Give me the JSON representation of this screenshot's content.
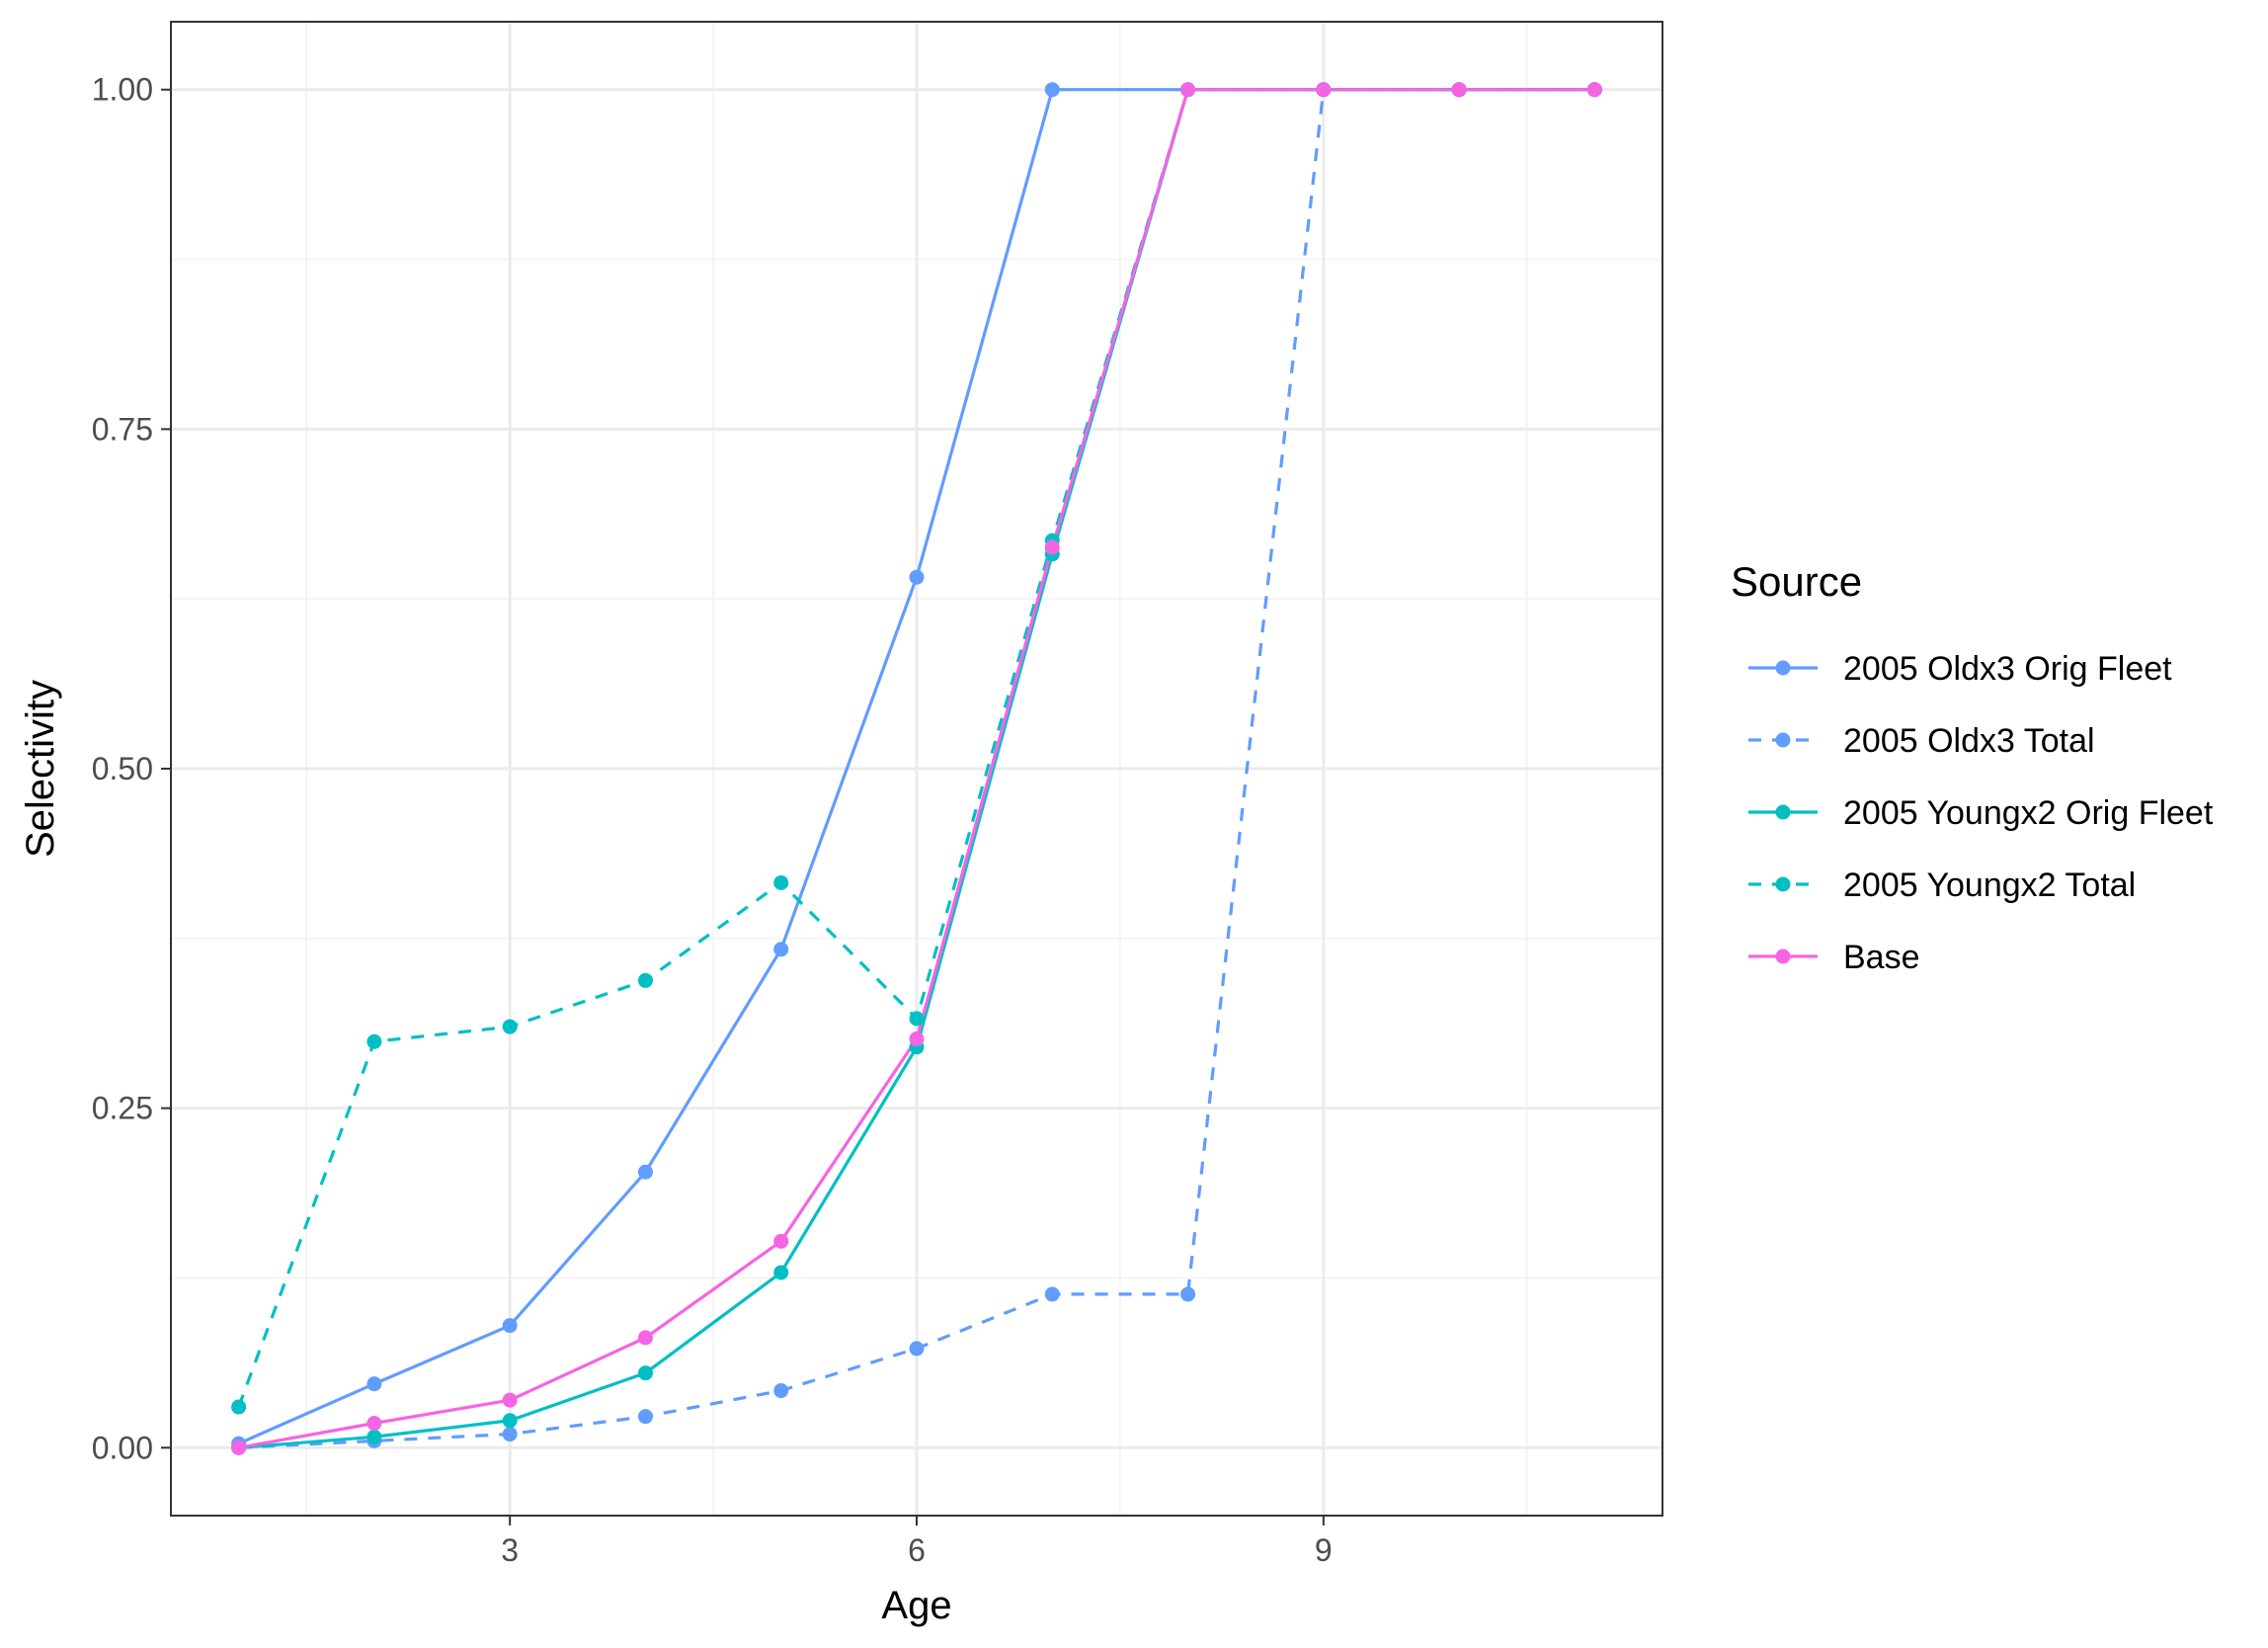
{
  "chart_data": {
    "type": "line",
    "xlabel": "Age",
    "ylabel": "Selectivity",
    "xlim": [
      0.5,
      11.5
    ],
    "ylim": [
      -0.05,
      1.05
    ],
    "x_ticks": [
      3,
      6,
      9
    ],
    "y_ticks": [
      0.0,
      0.25,
      0.5,
      0.75,
      1.0
    ],
    "x_tick_labels": [
      "3",
      "6",
      "9"
    ],
    "y_tick_labels": [
      "0.00",
      "0.25",
      "0.50",
      "0.75",
      "1.00"
    ],
    "grid": true,
    "legend_title": "Source",
    "legend_position": "right",
    "series": [
      {
        "name": "2005 Oldx3 Orig Fleet",
        "color": "#619CFF",
        "dash": "solid",
        "x": [
          1,
          2,
          3,
          4,
          5,
          6,
          7,
          8,
          9,
          10,
          11
        ],
        "y": [
          0.003,
          0.047,
          0.09,
          0.203,
          0.367,
          0.641,
          1.0,
          1.0,
          1.0,
          1.0,
          1.0
        ]
      },
      {
        "name": "2005 Oldx3 Total",
        "color": "#619CFF",
        "dash": "dashed",
        "x": [
          1,
          2,
          3,
          4,
          5,
          6,
          7,
          8,
          9,
          10,
          11
        ],
        "y": [
          0.0,
          0.005,
          0.01,
          0.023,
          0.042,
          0.073,
          0.113,
          0.113,
          1.0,
          1.0,
          1.0
        ]
      },
      {
        "name": "2005 Youngx2 Orig Fleet",
        "color": "#00BFC4",
        "dash": "solid",
        "x": [
          1,
          2,
          3,
          4,
          5,
          6,
          7,
          8,
          9,
          10,
          11
        ],
        "y": [
          0.0,
          0.008,
          0.02,
          0.055,
          0.129,
          0.295,
          0.658,
          1.0,
          1.0,
          1.0,
          1.0
        ]
      },
      {
        "name": "2005 Youngx2 Total",
        "color": "#00BFC4",
        "dash": "dashed",
        "x": [
          1,
          2,
          3,
          4,
          5,
          6,
          7,
          8,
          9,
          10,
          11
        ],
        "y": [
          0.03,
          0.299,
          0.31,
          0.344,
          0.416,
          0.316,
          0.668,
          1.0,
          1.0,
          1.0,
          1.0
        ]
      },
      {
        "name": "Base",
        "color": "#F564E3",
        "dash": "solid",
        "x": [
          1,
          2,
          3,
          4,
          5,
          6,
          7,
          8,
          9,
          10,
          11
        ],
        "y": [
          0.0,
          0.018,
          0.035,
          0.081,
          0.152,
          0.301,
          0.663,
          1.0,
          1.0,
          1.0,
          1.0
        ]
      }
    ]
  }
}
